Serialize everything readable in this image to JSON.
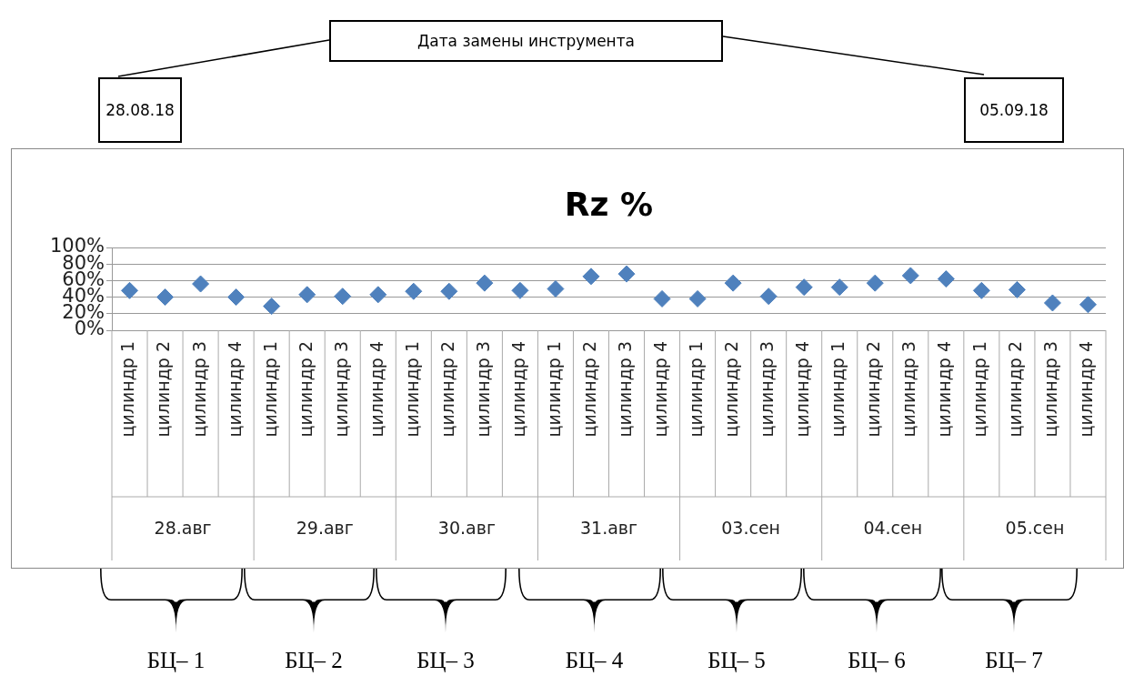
{
  "chart_data": {
    "type": "scatter",
    "title": "Rz %",
    "categories": [
      "цилиндр 1",
      "цилиндр 2",
      "цилиндр 3",
      "цилиндр 4",
      "цилиндр 1",
      "цилиндр 2",
      "цилиндр 3",
      "цилиндр 4",
      "цилиндр 1",
      "цилиндр 2",
      "цилиндр 3",
      "цилиндр 4",
      "цилиндр 1",
      "цилиндр 2",
      "цилиндр 3",
      "цилиндр 4",
      "цилиндр 1",
      "цилиндр 2",
      "цилиндр 3",
      "цилиндр 4",
      "цилиндр 1",
      "цилиндр 2",
      "цилиндр 3",
      "цилиндр 4",
      "цилиндр 1",
      "цилиндр 2",
      "цилиндр 3",
      "цилиндр 4"
    ],
    "values": [
      48,
      40,
      56,
      40,
      29,
      43,
      41,
      43,
      47,
      47,
      57,
      48,
      50,
      65,
      68,
      38,
      38,
      57,
      41,
      52,
      52,
      57,
      66,
      62,
      48,
      49,
      33,
      31
    ],
    "color": "#4f81bd",
    "marker": "diamond",
    "ylim": [
      0,
      100
    ],
    "yticks": [
      {
        "value": 0,
        "label": "0%"
      },
      {
        "value": 20,
        "label": "20%"
      },
      {
        "value": 40,
        "label": "40%"
      },
      {
        "value": 60,
        "label": "60%"
      },
      {
        "value": 80,
        "label": "80%"
      },
      {
        "value": 100,
        "label": "100%"
      }
    ],
    "grid": "y",
    "legend": false,
    "annotations": [
      "Дата замены инструмента",
      "28.08.18",
      "05.09.18",
      "28.авг",
      "29.авг",
      "30.авг",
      "31.авг",
      "03.сен",
      "04.сен",
      "05.сен",
      "БЦ– 1",
      "БЦ– 2",
      "БЦ– 3",
      "БЦ– 4",
      "БЦ– 5",
      "БЦ– 6",
      "БЦ– 7"
    ]
  }
}
